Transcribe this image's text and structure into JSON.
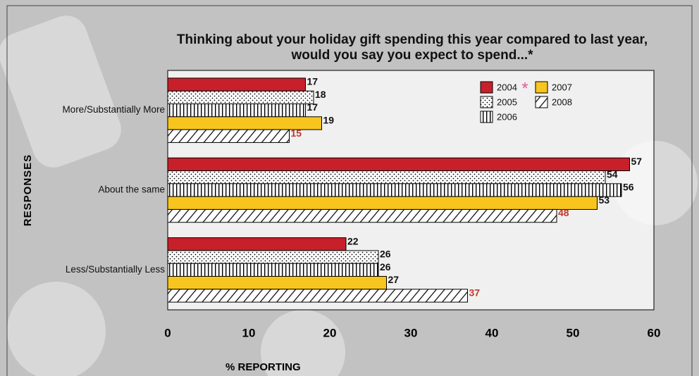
{
  "chart_data": {
    "type": "hbar",
    "title": "Thinking about your holiday gift spending this year compared to last year, would you say you expect to spend...*",
    "x_label": "% REPORTING",
    "y_label": "RESPONSES",
    "categories": [
      "More/Substantially More",
      "About the same",
      "Less/Substantially Less"
    ],
    "series": [
      {
        "name": "2004",
        "color": "#c8202a",
        "pattern": "solid",
        "label_color": "#111111",
        "values": [
          17,
          57,
          22
        ]
      },
      {
        "name": "2005",
        "color": "#ffffff",
        "pattern": "dots",
        "label_color": "#111111",
        "values": [
          18,
          54,
          26
        ]
      },
      {
        "name": "2006",
        "color": "#ffffff",
        "pattern": "vertical-lines",
        "label_color": "#111111",
        "values": [
          17,
          56,
          26
        ]
      },
      {
        "name": "2007",
        "color": "#f7c51e",
        "pattern": "solid",
        "label_color": "#111111",
        "values": [
          19,
          53,
          27
        ]
      },
      {
        "name": "2008",
        "color": "#ffffff",
        "pattern": "diagonal-lines",
        "label_color": "#c0392b",
        "values": [
          15,
          48,
          37
        ]
      }
    ],
    "legend_note": "*",
    "xlim": [
      0,
      60
    ],
    "xticks": [
      0,
      10,
      20,
      30,
      40,
      50,
      60
    ],
    "grid": false
  }
}
